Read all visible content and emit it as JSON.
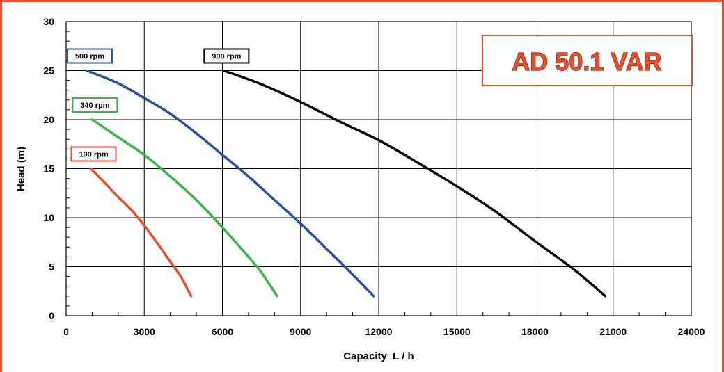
{
  "chart_data": {
    "type": "line",
    "title": "AD 50.1 VAR",
    "xlabel": "Capacity  L / h",
    "ylabel": "Head (m)",
    "xlim": [
      0,
      24000
    ],
    "ylim": [
      0,
      30
    ],
    "xticks": [
      "0",
      "3000",
      "6000",
      "9000",
      "12000",
      "15000",
      "18000",
      "21000",
      "24000"
    ],
    "yticks": [
      "0",
      "5",
      "10",
      "15",
      "20",
      "25",
      "30"
    ],
    "grid": true,
    "series": [
      {
        "name": "190 rpm",
        "color": "#e2502c",
        "points": [
          [
            950,
            15
          ],
          [
            1500,
            13.5
          ],
          [
            2000,
            12.1
          ],
          [
            2500,
            10.8
          ],
          [
            3000,
            9.2
          ],
          [
            3500,
            7.4
          ],
          [
            4000,
            5.5
          ],
          [
            4400,
            4.0
          ],
          [
            4800,
            2
          ]
        ]
      },
      {
        "name": "340 rpm",
        "color": "#3bb54a",
        "points": [
          [
            1000,
            20
          ],
          [
            2000,
            18.2
          ],
          [
            3000,
            16.4
          ],
          [
            4000,
            14.2
          ],
          [
            5000,
            11.8
          ],
          [
            6000,
            9.0
          ],
          [
            7000,
            6.0
          ],
          [
            7500,
            4.4
          ],
          [
            8100,
            2
          ]
        ]
      },
      {
        "name": "500 rpm",
        "color": "#2a4fa0",
        "points": [
          [
            800,
            25
          ],
          [
            2000,
            23.7
          ],
          [
            3000,
            22.2
          ],
          [
            4000,
            20.6
          ],
          [
            5000,
            18.6
          ],
          [
            6000,
            16.4
          ],
          [
            7000,
            14.2
          ],
          [
            8000,
            11.8
          ],
          [
            9000,
            9.4
          ],
          [
            10000,
            6.8
          ],
          [
            11000,
            4.2
          ],
          [
            11800,
            2
          ]
        ]
      },
      {
        "name": "900 rpm",
        "color": "#000000",
        "points": [
          [
            6050,
            25
          ],
          [
            7500,
            23.6
          ],
          [
            9000,
            21.8
          ],
          [
            10500,
            19.8
          ],
          [
            12000,
            17.9
          ],
          [
            13500,
            15.6
          ],
          [
            15000,
            13.2
          ],
          [
            16500,
            10.6
          ],
          [
            18000,
            7.6
          ],
          [
            19500,
            4.7
          ],
          [
            20700,
            2
          ]
        ]
      }
    ]
  }
}
